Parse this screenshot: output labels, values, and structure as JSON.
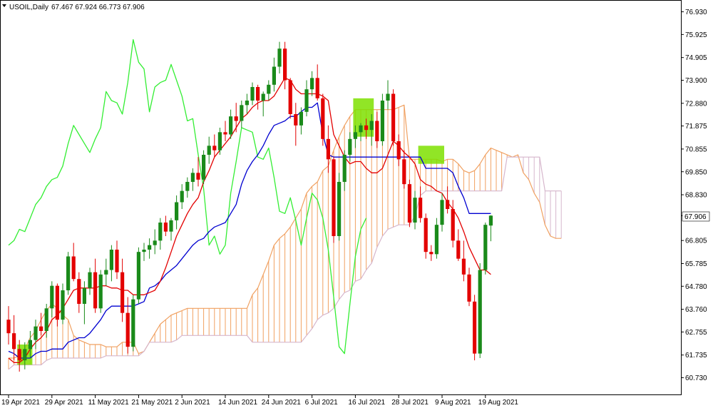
{
  "header": {
    "symbol_timeframe": "USOIL,Daily",
    "ohlc": "67.467 67.924 66.773 67.906",
    "menu_icon": "triangle-down-icon"
  },
  "chart_data": {
    "type": "candlestick",
    "symbol": "USOIL",
    "timeframe": "Daily",
    "last_price": "67.906",
    "last_price_color": "#000000",
    "y_ticks": [
      "76.930",
      "75.925",
      "74.905",
      "73.900",
      "72.880",
      "71.875",
      "70.855",
      "69.850",
      "68.830",
      "67.905",
      "66.805",
      "65.785",
      "64.780",
      "63.760",
      "62.755",
      "61.735",
      "60.730"
    ],
    "ylim": [
      60.4,
      77.2
    ],
    "x_ticks": [
      "19 Apr 2021",
      "29 Apr 2021",
      "11 May 2021",
      "21 May 2021",
      "2 Jun 2021",
      "14 Jun 2021",
      "24 Jun 2021",
      "6 Jul 2021",
      "16 Jul 2021",
      "28 Jul 2021",
      "9 Aug 2021",
      "19 Aug 2021"
    ],
    "x_tick_index": [
      0,
      8,
      16,
      24,
      32,
      40,
      48,
      56,
      64,
      72,
      80,
      88
    ],
    "candles": [
      [
        63.3,
        63.9,
        62.2,
        62.7
      ],
      [
        62.7,
        63.5,
        61.5,
        62.0
      ],
      [
        62.0,
        62.4,
        61.0,
        61.5
      ],
      [
        61.5,
        62.3,
        61.1,
        62.0
      ],
      [
        62.0,
        62.8,
        61.6,
        62.4
      ],
      [
        62.4,
        63.3,
        62.0,
        63.0
      ],
      [
        63.0,
        63.6,
        62.6,
        62.8
      ],
      [
        62.8,
        64.0,
        62.5,
        63.8
      ],
      [
        63.8,
        65.0,
        63.4,
        64.8
      ],
      [
        64.8,
        64.9,
        63.0,
        63.3
      ],
      [
        63.3,
        64.9,
        63.1,
        64.6
      ],
      [
        64.6,
        66.3,
        64.4,
        66.1
      ],
      [
        66.1,
        66.7,
        65.0,
        65.1
      ],
      [
        65.1,
        65.4,
        63.6,
        64.0
      ],
      [
        64.0,
        65.0,
        63.1,
        64.7
      ],
      [
        64.7,
        65.6,
        64.4,
        65.4
      ],
      [
        65.4,
        66.0,
        63.6,
        63.8
      ],
      [
        63.8,
        65.5,
        63.6,
        65.3
      ],
      [
        65.3,
        66.0,
        64.8,
        65.5
      ],
      [
        65.5,
        66.6,
        65.0,
        66.4
      ],
      [
        66.4,
        66.8,
        65.1,
        65.4
      ],
      [
        65.4,
        66.0,
        63.2,
        63.6
      ],
      [
        63.6,
        64.3,
        61.8,
        62.1
      ],
      [
        62.1,
        64.4,
        61.9,
        64.2
      ],
      [
        64.2,
        66.5,
        64.0,
        66.3
      ],
      [
        66.3,
        66.7,
        65.9,
        66.4
      ],
      [
        66.4,
        66.9,
        66.0,
        66.6
      ],
      [
        66.6,
        67.3,
        66.2,
        66.8
      ],
      [
        66.8,
        67.8,
        66.4,
        67.6
      ],
      [
        67.6,
        67.9,
        67.0,
        67.2
      ],
      [
        67.2,
        67.8,
        66.8,
        67.7
      ],
      [
        67.7,
        68.8,
        67.3,
        68.5
      ],
      [
        68.5,
        69.3,
        68.2,
        69.0
      ],
      [
        69.0,
        69.6,
        68.7,
        69.4
      ],
      [
        69.4,
        70.0,
        69.0,
        69.8
      ],
      [
        69.8,
        70.5,
        69.2,
        69.5
      ],
      [
        69.5,
        70.8,
        69.3,
        70.6
      ],
      [
        70.6,
        71.4,
        70.2,
        71.0
      ],
      [
        71.0,
        71.5,
        70.5,
        70.8
      ],
      [
        70.8,
        71.8,
        70.6,
        71.6
      ],
      [
        71.6,
        72.1,
        71.2,
        71.5
      ],
      [
        71.5,
        72.6,
        71.3,
        72.3
      ],
      [
        72.3,
        72.9,
        71.6,
        72.1
      ],
      [
        72.1,
        73.0,
        71.8,
        72.8
      ],
      [
        72.8,
        73.3,
        72.4,
        73.0
      ],
      [
        73.0,
        73.8,
        72.8,
        73.6
      ],
      [
        73.6,
        73.7,
        72.6,
        73.0
      ],
      [
        73.0,
        73.4,
        72.3,
        73.3
      ],
      [
        73.3,
        73.9,
        73.0,
        73.7
      ],
      [
        73.7,
        74.9,
        73.4,
        74.5
      ],
      [
        74.5,
        75.6,
        74.2,
        75.3
      ],
      [
        75.3,
        75.6,
        73.5,
        73.9
      ],
      [
        73.9,
        74.0,
        72.2,
        72.4
      ],
      [
        72.4,
        72.9,
        71.0,
        71.9
      ],
      [
        71.9,
        72.7,
        71.5,
        72.5
      ],
      [
        72.5,
        73.9,
        72.3,
        73.5
      ],
      [
        73.5,
        74.3,
        73.2,
        74.0
      ],
      [
        74.0,
        74.6,
        73.0,
        73.1
      ],
      [
        73.1,
        73.3,
        71.0,
        71.3
      ],
      [
        71.3,
        71.9,
        69.8,
        70.4
      ],
      [
        70.4,
        70.5,
        66.7,
        67.0
      ],
      [
        67.0,
        69.8,
        66.8,
        69.4
      ],
      [
        69.4,
        70.8,
        69.0,
        70.6
      ],
      [
        70.6,
        71.6,
        70.3,
        71.3
      ],
      [
        71.3,
        71.9,
        70.9,
        71.6
      ],
      [
        71.6,
        72.0,
        71.2,
        71.9
      ],
      [
        71.9,
        72.2,
        71.3,
        71.7
      ],
      [
        71.7,
        72.4,
        71.0,
        72.1
      ],
      [
        72.1,
        72.5,
        70.9,
        71.2
      ],
      [
        71.2,
        73.3,
        71.0,
        73.0
      ],
      [
        73.0,
        73.9,
        72.6,
        73.3
      ],
      [
        73.3,
        73.5,
        71.0,
        71.2
      ],
      [
        71.2,
        71.5,
        70.1,
        70.4
      ],
      [
        70.4,
        70.8,
        69.1,
        69.3
      ],
      [
        69.3,
        69.5,
        67.4,
        67.6
      ],
      [
        67.6,
        69.0,
        67.3,
        68.7
      ],
      [
        68.7,
        69.2,
        67.6,
        67.8
      ],
      [
        67.8,
        68.0,
        66.0,
        66.3
      ],
      [
        66.3,
        66.6,
        65.9,
        66.2
      ],
      [
        66.2,
        67.8,
        66.0,
        67.5
      ],
      [
        67.5,
        68.9,
        67.2,
        68.6
      ],
      [
        68.6,
        69.2,
        68.0,
        68.2
      ],
      [
        68.2,
        68.6,
        66.5,
        66.8
      ],
      [
        66.8,
        67.3,
        65.9,
        66.0
      ],
      [
        66.0,
        66.8,
        65.0,
        65.3
      ],
      [
        65.3,
        65.6,
        63.9,
        64.1
      ],
      [
        64.1,
        64.4,
        61.5,
        61.8
      ],
      [
        61.8,
        65.8,
        61.6,
        65.5
      ],
      [
        65.5,
        67.6,
        65.3,
        67.5
      ],
      [
        67.467,
        67.924,
        66.773,
        67.906
      ]
    ],
    "tenkan_sen": [
      61.6,
      61.4,
      61.4,
      61.6,
      62.0,
      62.3,
      62.5,
      62.8,
      63.3,
      63.5,
      63.8,
      64.2,
      64.6,
      64.7,
      64.7,
      64.7,
      64.7,
      64.8,
      64.8,
      64.7,
      64.7,
      64.6,
      64.6,
      64.4,
      64.4,
      64.4,
      64.5,
      64.6,
      65.0,
      65.6,
      66.3,
      67.0,
      67.5,
      68.0,
      68.4,
      68.7,
      69.4,
      69.9,
      70.5,
      70.8,
      71.1,
      71.4,
      71.8,
      72.2,
      72.4,
      72.7,
      72.9,
      73.0,
      73.0,
      73.2,
      73.6,
      74.0,
      73.9,
      73.5,
      73.3,
      73.3,
      73.3,
      73.3,
      73.2,
      73.0,
      71.5,
      71.0,
      70.5,
      70.2,
      70.3,
      70.3,
      70.0,
      69.8,
      69.8,
      70.0,
      70.6,
      71.2,
      71.0,
      70.7,
      70.5,
      70.2,
      69.5,
      69.3,
      69.2,
      69.0,
      68.9,
      68.5,
      68.2,
      67.8,
      67.2,
      66.5,
      66.0,
      65.5,
      65.5,
      65.3
    ],
    "kijun_sen": [
      61.9,
      61.8,
      61.6,
      61.6,
      61.6,
      61.8,
      61.9,
      61.9,
      62.0,
      62.0,
      62.0,
      62.3,
      62.4,
      62.5,
      62.5,
      62.7,
      63.0,
      63.3,
      63.7,
      63.9,
      63.9,
      63.9,
      63.9,
      63.9,
      64.0,
      64.1,
      64.7,
      64.8,
      65.0,
      65.3,
      65.5,
      65.7,
      66.0,
      66.3,
      66.6,
      66.8,
      66.9,
      67.2,
      67.4,
      67.5,
      67.6,
      68.0,
      68.4,
      69.3,
      69.9,
      70.3,
      70.6,
      71.0,
      71.5,
      71.9,
      72.0,
      72.1,
      72.3,
      72.3,
      72.5,
      72.7,
      72.7,
      72.9,
      71.5,
      70.6,
      70.5,
      70.5,
      70.5,
      70.5,
      70.5,
      70.5,
      70.5,
      70.5,
      70.5,
      70.5,
      70.5,
      70.5,
      70.5,
      70.5,
      70.5,
      70.5,
      70.5,
      70.0,
      70.0,
      70.0,
      70.0,
      70.0,
      69.8,
      69.2,
      68.7,
      68.0,
      68.0,
      68.0,
      68.0,
      68.0
    ],
    "chikou_span": [
      66.6,
      66.8,
      67.3,
      67.2,
      67.8,
      68.4,
      68.7,
      69.2,
      69.5,
      69.6,
      70.1,
      71.1,
      71.9,
      71.5,
      71.1,
      70.7,
      71.3,
      71.8,
      73.4,
      73.0,
      72.9,
      72.4,
      73.8,
      75.7,
      74.7,
      74.4,
      72.5,
      73.6,
      73.8,
      73.9,
      74.6,
      73.9,
      73.2,
      72.1,
      72.2,
      70.6,
      69.1,
      66.6,
      67.0,
      66.2,
      66.6,
      68.9,
      70.3,
      71.8,
      71.7,
      71.6,
      70.5,
      70.4,
      70.9,
      69.6,
      68.1,
      68.0,
      68.7,
      67.7,
      66.6,
      67.8,
      68.9,
      68.6,
      67.8,
      66.4,
      64.3,
      62.1,
      61.8,
      64.0,
      66.1,
      67.3,
      67.8
    ],
    "senkou_a": [
      61.6,
      61.6,
      61.7,
      62.0,
      62.5,
      62.8,
      63.3,
      63.7,
      64.0,
      63.8,
      63.5,
      63.3,
      62.6,
      62.4,
      62.3,
      62.2,
      62.2,
      62.2,
      62.1,
      62.1,
      62.1,
      62.3,
      62.3,
      62.3,
      61.8,
      61.9,
      62.3,
      62.7,
      63.1,
      63.3,
      63.5,
      63.6,
      63.7,
      63.8,
      63.8,
      63.8,
      63.8,
      63.8,
      63.8,
      63.8,
      63.8,
      63.8,
      63.8,
      63.8,
      63.8,
      64.4,
      64.7,
      65.3,
      65.9,
      66.6,
      66.9,
      67.1,
      67.4,
      67.8,
      68.2,
      68.9,
      69.2,
      69.4,
      69.9,
      70.1,
      70.8,
      71.4,
      71.9,
      72.3,
      72.6,
      72.6,
      72.6,
      72.6,
      72.6,
      72.6,
      72.6,
      72.6,
      72.7,
      72.8,
      70.4,
      70.4,
      70.4,
      70.4,
      70.4,
      70.4,
      70.3,
      70.4,
      70.4,
      70.2,
      69.9,
      69.8,
      69.9,
      70.2,
      70.6,
      70.9,
      70.8,
      70.7,
      70.6,
      70.5,
      70.6,
      69.8,
      69.5,
      68.9,
      68.5,
      67.5,
      67.0,
      66.9,
      66.9
    ],
    "senkou_b": [
      61.1,
      61.3,
      61.3,
      61.3,
      61.3,
      61.3,
      61.3,
      61.5,
      61.6,
      61.6,
      61.6,
      61.6,
      61.6,
      61.6,
      61.6,
      61.6,
      61.6,
      61.6,
      61.7,
      61.7,
      61.7,
      61.7,
      61.7,
      61.7,
      61.7,
      61.9,
      62.3,
      62.3,
      62.3,
      62.3,
      62.3,
      62.4,
      62.6,
      62.6,
      62.6,
      62.6,
      62.6,
      62.6,
      62.6,
      62.6,
      62.6,
      62.6,
      62.6,
      62.6,
      62.6,
      62.3,
      62.3,
      62.3,
      62.3,
      62.3,
      62.3,
      62.3,
      62.3,
      62.3,
      62.3,
      62.6,
      62.9,
      63.3,
      63.5,
      63.6,
      63.8,
      64.2,
      64.5,
      64.6,
      65.0,
      65.1,
      65.5,
      65.8,
      66.5,
      67.0,
      67.3,
      67.4,
      67.5,
      67.5,
      67.5,
      67.9,
      68.8,
      69.0,
      69.0,
      69.0,
      69.0,
      69.0,
      69.0,
      69.0,
      69.0,
      69.0,
      69.0,
      69.0,
      69.0,
      69.0,
      69.0,
      69.0,
      70.5,
      70.5,
      70.5,
      70.5,
      70.5,
      70.5,
      70.5,
      69.0,
      69.0,
      69.0,
      69.0
    ],
    "colors": {
      "bull": "#1a8a1a",
      "bear": "#e30000",
      "tenkan": "#e30000",
      "kijun": "#0000d0",
      "chikou": "#33ee33",
      "cloud_a": "#f0a060",
      "cloud_b": "#d6b6cc",
      "highlight": "#7ee000"
    },
    "highlights": [
      [
        2,
        4,
        61.3,
        62.2
      ],
      [
        64,
        67,
        71.4,
        73.1
      ],
      [
        76,
        80,
        70.2,
        71.0
      ]
    ],
    "grid": false
  }
}
